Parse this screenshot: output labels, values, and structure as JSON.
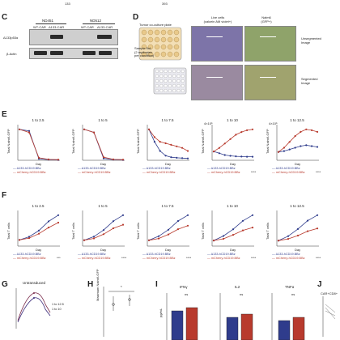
{
  "header": {
    "left_num": "133",
    "right_num": "393"
  },
  "panel_c": {
    "letter": "C",
    "groups": [
      "ND451",
      "ND512"
    ],
    "lanes": [
      "WT-CAR",
      "Δ133-CAR",
      "WT-CAR",
      "Δ133-CAR"
    ],
    "rows": [
      "Δ133p53α",
      "β-Actin"
    ]
  },
  "panel_d": {
    "letter": "D",
    "plate_label": "Tumor co-culture plate",
    "sample_label": "Sample 5uL\n(2 replicates\nper condition)",
    "col_labels": [
      "Live cells\n(calcein AM violet+)",
      "Nalm6\n(GFP+)"
    ],
    "row_labels": [
      "Unsegmented\nImage",
      "Segmented\nImage"
    ],
    "colors": {
      "live": "#7d74a8",
      "nalm": "#8fa36a"
    }
  },
  "panel_e": {
    "letter": "E",
    "ylabel": "Total Nalm6-GFP",
    "xlabel": "Day",
    "legend": [
      "Δ133-hCD19.BBz",
      "mCherry-hCD19.BBz"
    ],
    "colors": {
      "d133": "#2f3c8c",
      "mch": "#b83a2d"
    },
    "sig": "****",
    "charts": [
      {
        "title": "1 to 2.5",
        "ymul": "",
        "sig": ""
      },
      {
        "title": "1 to 5",
        "ymul": "",
        "sig": ""
      },
      {
        "title": "1 to 7.5",
        "ymul": "",
        "sig": ""
      },
      {
        "title": "1 to 10",
        "ymul": "4×10⁵",
        "sig": "****"
      },
      {
        "title": "1 to 12.5",
        "ymul": "4×10⁵",
        "sig": "****"
      }
    ]
  },
  "panel_f": {
    "letter": "F",
    "ylabel": "Total T cells",
    "xlabel": "Day",
    "legend": [
      "Δ133-hCD19.BBz",
      "mCherry-hCD19.BBz"
    ],
    "charts": [
      {
        "title": "1 to 2.5",
        "sig": "***"
      },
      {
        "title": "1 to 5",
        "sig": "****"
      },
      {
        "title": "1 to 7.5",
        "sig": "****"
      },
      {
        "title": "1 to 10",
        "sig": "****"
      },
      {
        "title": "1 to 12.5",
        "sig": "****"
      }
    ]
  },
  "panel_g": {
    "letter": "G",
    "title": "Untransduced",
    "legend": [
      "1 to 12.5",
      "1 to 10"
    ]
  },
  "panel_h": {
    "letter": "H",
    "ylabel": "Maximum Nalm6-GFP",
    "sig": "*"
  },
  "panel_i": {
    "letter": "I",
    "titles": [
      "IFNγ",
      "IL2",
      "TNFα"
    ],
    "ylabel": "pg/mL",
    "sig": [
      "ns",
      "ns",
      "ns"
    ]
  },
  "panel_j": {
    "letter": "J",
    "title": "CAR+CD8+"
  },
  "chart_data": [
    {
      "type": "line",
      "title": "1 to 2.5",
      "x": [
        0,
        2,
        4,
        6,
        8
      ],
      "series": [
        {
          "name": "Δ133-hCD19.BBz",
          "values": [
            1.0,
            0.95,
            0.05,
            0.02,
            0.01
          ]
        },
        {
          "name": "mCherry-hCD19.BBz",
          "values": [
            1.0,
            0.9,
            0.08,
            0.03,
            0.02
          ]
        }
      ],
      "xlabel": "Day",
      "ylabel": "Total Nalm6-GFP"
    },
    {
      "type": "line",
      "title": "1 to 5",
      "x": [
        0,
        2,
        4,
        6,
        8
      ],
      "series": [
        {
          "name": "Δ133-hCD19.BBz",
          "values": [
            1.0,
            0.9,
            0.06,
            0.02,
            0.01
          ]
        },
        {
          "name": "mCherry-hCD19.BBz",
          "values": [
            1.0,
            0.9,
            0.1,
            0.03,
            0.02
          ]
        }
      ],
      "xlabel": "Day",
      "ylabel": "Total Nalm6-GFP"
    },
    {
      "type": "line",
      "title": "1 to 7.5",
      "x": [
        0,
        1,
        2,
        3,
        4,
        5,
        6,
        7
      ],
      "series": [
        {
          "name": "Δ133-hCD19.BBz",
          "values": [
            1.0,
            0.6,
            0.3,
            0.15,
            0.1,
            0.08,
            0.07,
            0.06
          ]
        },
        {
          "name": "mCherry-hCD19.BBz",
          "values": [
            1.0,
            0.75,
            0.6,
            0.55,
            0.5,
            0.45,
            0.4,
            0.3
          ]
        }
      ],
      "xlabel": "Day",
      "ylabel": "Total Nalm6-GFP"
    },
    {
      "type": "line",
      "title": "1 to 10",
      "x": [
        0,
        1,
        2,
        3,
        4,
        5,
        6,
        7
      ],
      "series": [
        {
          "name": "Δ133-hCD19.BBz",
          "values": [
            1.0,
            0.8,
            0.6,
            0.5,
            0.45,
            0.42,
            0.4,
            0.4
          ]
        },
        {
          "name": "mCherry-hCD19.BBz",
          "values": [
            1.0,
            1.4,
            1.9,
            2.4,
            2.9,
            3.2,
            3.4,
            3.5
          ]
        }
      ],
      "xlabel": "Day",
      "ylabel": "Total Nalm6-GFP"
    },
    {
      "type": "line",
      "title": "1 to 12.5",
      "x": [
        0,
        1,
        2,
        3,
        4,
        5,
        6,
        7
      ],
      "series": [
        {
          "name": "Δ133-hCD19.BBz",
          "values": [
            1.0,
            1.1,
            1.3,
            1.5,
            1.7,
            1.8,
            1.7,
            1.6
          ]
        },
        {
          "name": "mCherry-hCD19.BBz",
          "values": [
            1.0,
            1.5,
            2.2,
            2.9,
            3.4,
            3.7,
            3.6,
            3.4
          ]
        }
      ],
      "xlabel": "Day",
      "ylabel": "Total Nalm6-GFP"
    },
    {
      "type": "line",
      "title": "1 to 2.5",
      "x": [
        0,
        2,
        4,
        6,
        8
      ],
      "series": [
        {
          "name": "Δ133-hCD19.BBz",
          "values": [
            1,
            1.5,
            2.5,
            4,
            5
          ]
        },
        {
          "name": "mCherry-hCD19.BBz",
          "values": [
            1,
            1.3,
            2,
            3,
            3.8
          ]
        }
      ],
      "xlabel": "Day",
      "ylabel": "Total T cells"
    },
    {
      "type": "line",
      "title": "1 to 5",
      "x": [
        0,
        2,
        4,
        6,
        8
      ],
      "series": [
        {
          "name": "Δ133-hCD19.BBz",
          "values": [
            1,
            1.6,
            2.7,
            4.2,
            5.2
          ]
        },
        {
          "name": "mCherry-hCD19.BBz",
          "values": [
            1,
            1.3,
            2,
            3,
            3.6
          ]
        }
      ],
      "xlabel": "Day",
      "ylabel": "Total T cells"
    },
    {
      "type": "line",
      "title": "1 to 7.5",
      "x": [
        0,
        2,
        4,
        6,
        8
      ],
      "series": [
        {
          "name": "Δ133-hCD19.BBz",
          "values": [
            1,
            1.7,
            2.8,
            4.3,
            5.3
          ]
        },
        {
          "name": "mCherry-hCD19.BBz",
          "values": [
            1,
            1.3,
            2,
            2.9,
            3.5
          ]
        }
      ],
      "xlabel": "Day",
      "ylabel": "Total T cells"
    },
    {
      "type": "line",
      "title": "1 to 10",
      "x": [
        0,
        2,
        4,
        6,
        8
      ],
      "series": [
        {
          "name": "Δ133-hCD19.BBz",
          "values": [
            1,
            1.8,
            3,
            4.5,
            5.5
          ]
        },
        {
          "name": "mCherry-hCD19.BBz",
          "values": [
            1,
            1.3,
            2,
            2.8,
            3.3
          ]
        }
      ],
      "xlabel": "Day",
      "ylabel": "Total T cells"
    },
    {
      "type": "line",
      "title": "1 to 12.5",
      "x": [
        0,
        2,
        4,
        6,
        8
      ],
      "series": [
        {
          "name": "Δ133-hCD19.BBz",
          "values": [
            1,
            1.8,
            3.1,
            4.6,
            5.6
          ]
        },
        {
          "name": "mCherry-hCD19.BBz",
          "values": [
            1,
            1.3,
            1.9,
            2.7,
            3.2
          ]
        }
      ],
      "xlabel": "Day",
      "ylabel": "Total T cells"
    }
  ]
}
